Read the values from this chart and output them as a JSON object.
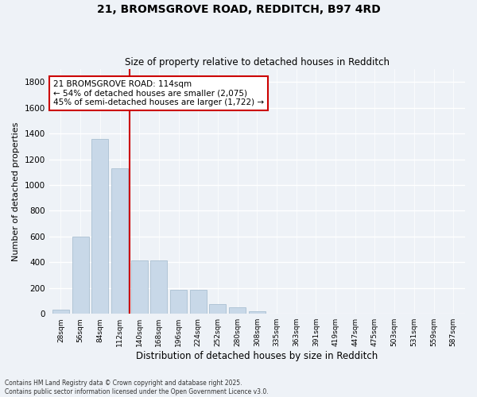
{
  "title": "21, BROMSGROVE ROAD, REDDITCH, B97 4RD",
  "subtitle": "Size of property relative to detached houses in Redditch",
  "xlabel": "Distribution of detached houses by size in Redditch",
  "ylabel": "Number of detached properties",
  "categories": [
    "28sqm",
    "56sqm",
    "84sqm",
    "112sqm",
    "140sqm",
    "168sqm",
    "196sqm",
    "224sqm",
    "252sqm",
    "280sqm",
    "308sqm",
    "335sqm",
    "363sqm",
    "391sqm",
    "419sqm",
    "447sqm",
    "475sqm",
    "503sqm",
    "531sqm",
    "559sqm",
    "587sqm"
  ],
  "values": [
    30,
    600,
    1360,
    1130,
    415,
    415,
    185,
    185,
    75,
    50,
    20,
    0,
    0,
    0,
    0,
    0,
    0,
    0,
    0,
    0,
    0
  ],
  "bar_color": "#c8d8e8",
  "bar_edge_color": "#a0b8cc",
  "vline_x_index": 3,
  "vline_color": "#cc0000",
  "annotation_box_text": "21 BROMSGROVE ROAD: 114sqm\n← 54% of detached houses are smaller (2,075)\n45% of semi-detached houses are larger (1,722) →",
  "annotation_box_color": "#cc0000",
  "annotation_box_fill": "#ffffff",
  "footer_text": "Contains HM Land Registry data © Crown copyright and database right 2025.\nContains public sector information licensed under the Open Government Licence v3.0.",
  "background_color": "#eef2f7",
  "grid_color": "#ffffff",
  "ylim": [
    0,
    1900
  ],
  "yticks": [
    0,
    200,
    400,
    600,
    800,
    1000,
    1200,
    1400,
    1600,
    1800
  ]
}
